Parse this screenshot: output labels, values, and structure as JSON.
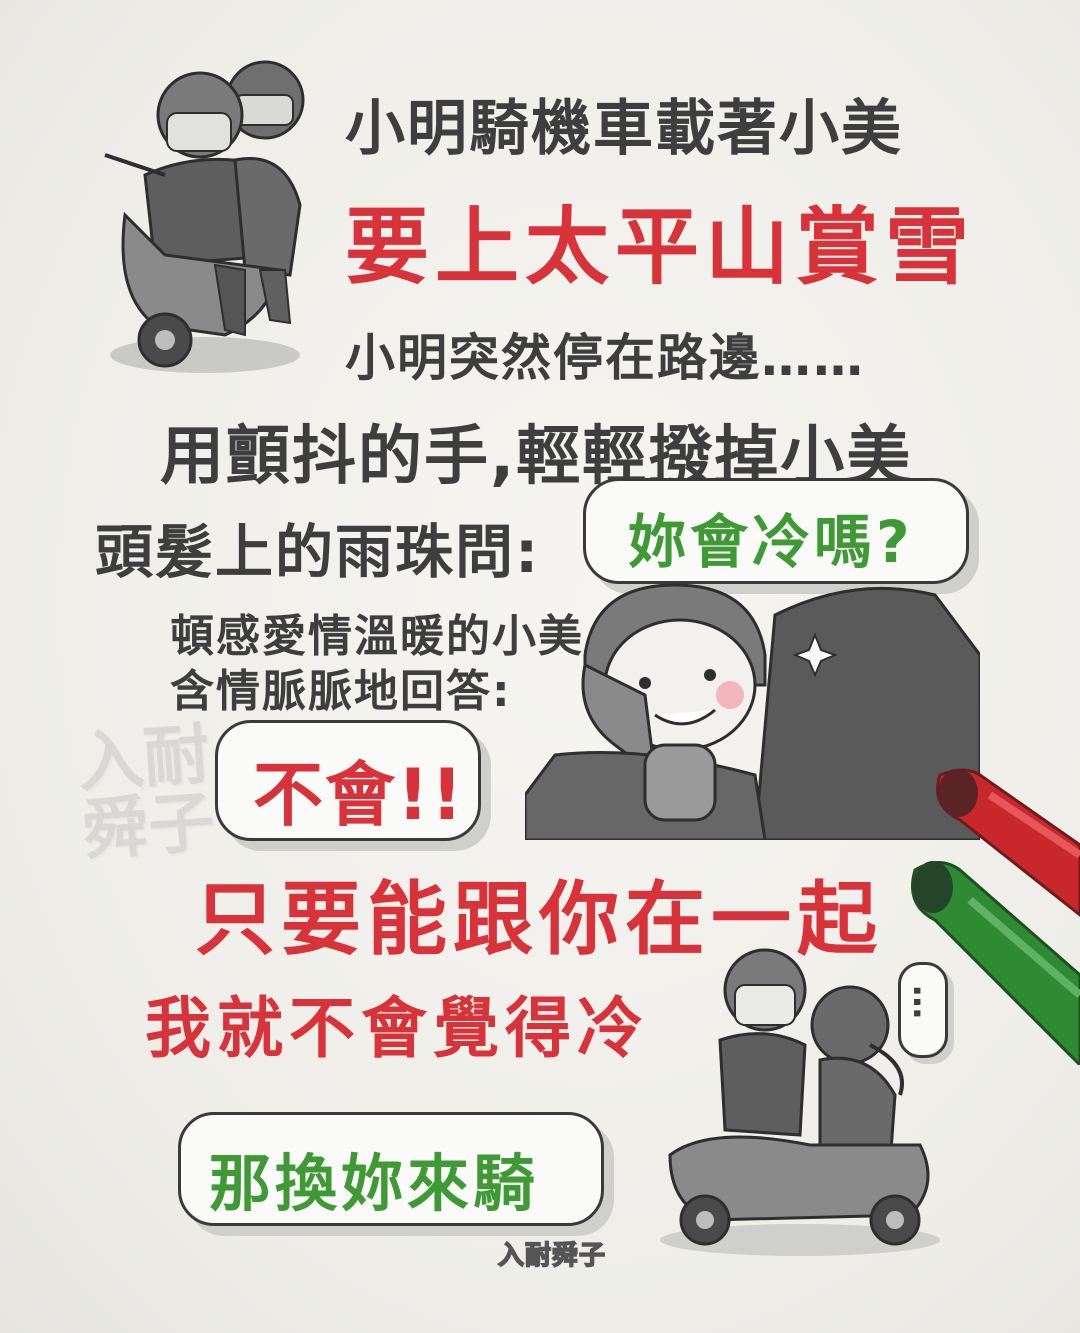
{
  "lines": {
    "line1": "小明騎機車載著小美",
    "line2": "要上太平山賞雪",
    "line3": "小明突然停在路邊……",
    "line4": "用顫抖的手,輕輕撥掉小美",
    "line5": "頭髮上的雨珠問:",
    "line6": "頓感愛情溫暖的小美",
    "line7": "含情脈脈地回答:",
    "line8": "只要能跟你在一起",
    "line9": "我就不會覺得冷"
  },
  "bubbles": {
    "question": "妳會冷嗎?",
    "answer": "不會!!",
    "ellipsis": "…",
    "final": "那換妳來騎"
  },
  "watermark": {
    "top": "入耐",
    "bottom": "舜子",
    "signature": "入耐舜子"
  },
  "colors": {
    "red_text": "#d8323a",
    "green_text": "#3f9a35",
    "gray_text": "#3e3e3e",
    "red_marker": "#c8282c",
    "green_marker": "#2f8a34"
  }
}
